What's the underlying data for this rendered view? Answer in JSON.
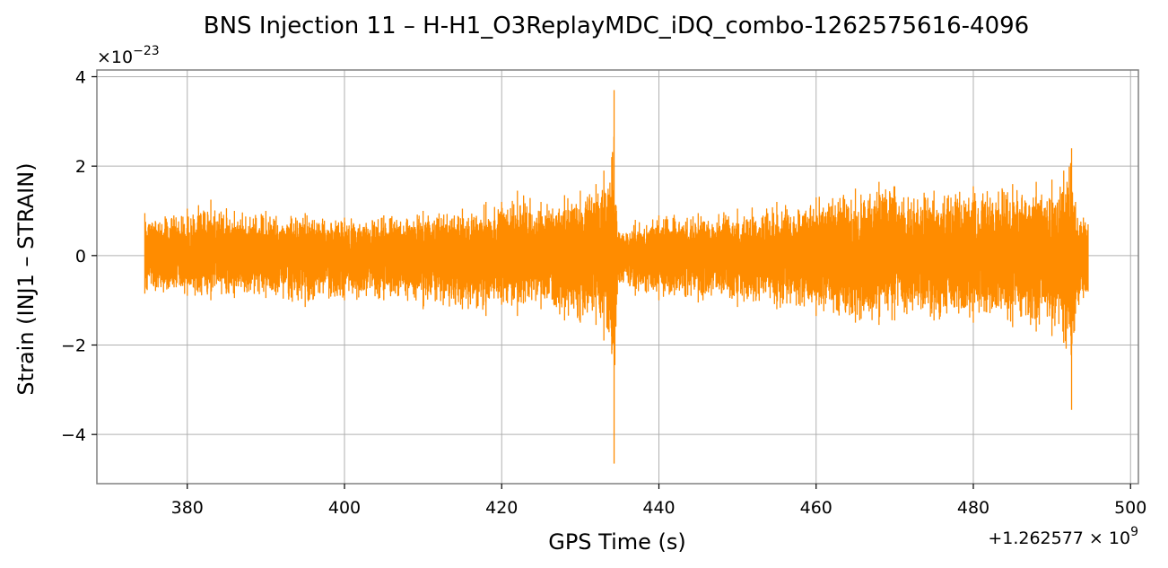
{
  "chart_data": {
    "type": "line",
    "title": "BNS Injection 11 – H-H1_O3ReplayMDC_iDQ_combo-1262575616-4096",
    "xlabel": "GPS Time (s)",
    "ylabel": "Strain (INJ1 – STRAIN)",
    "x_offset_label": "+1.262577 × 10",
    "x_offset_exponent": "9",
    "y_scale_label": "×10",
    "y_scale_exponent": "−23",
    "xlim": [
      368.5,
      501.0
    ],
    "ylim": [
      -5.1,
      4.15
    ],
    "xticks": [
      380,
      400,
      420,
      440,
      460,
      480,
      500
    ],
    "xtick_labels": [
      "380",
      "400",
      "420",
      "440",
      "460",
      "480",
      "500"
    ],
    "yticks": [
      -4,
      -2,
      0,
      2,
      4
    ],
    "ytick_labels": [
      "−4",
      "−2",
      "0",
      "2",
      "4"
    ],
    "grid": true,
    "series": [
      {
        "color": "#ff8c00",
        "x_range": [
          374.6,
          494.6
        ],
        "envelope_x": [
          374.6,
          380,
          383,
          386,
          390,
          395,
          400,
          405,
          410,
          415,
          418,
          420,
          422,
          425,
          428,
          430,
          432,
          433,
          434,
          434.3,
          434.6,
          435,
          437,
          440,
          445,
          450,
          455,
          460,
          465,
          468,
          470,
          475,
          480,
          485,
          488,
          490,
          491.5,
          492.5,
          493,
          494,
          494.6
        ],
        "envelope_upper": [
          0.95,
          1.05,
          1.25,
          1.0,
          1.0,
          0.95,
          0.85,
          0.9,
          1.0,
          1.05,
          1.2,
          1.2,
          1.45,
          1.2,
          1.35,
          1.45,
          1.6,
          1.9,
          2.2,
          3.7,
          1.0,
          0.5,
          0.8,
          0.9,
          0.95,
          1.05,
          1.2,
          1.3,
          1.5,
          1.65,
          1.55,
          1.45,
          1.55,
          1.6,
          1.65,
          1.7,
          1.9,
          2.4,
          1.2,
          0.85,
          0.7
        ],
        "envelope_lower": [
          -0.85,
          -0.9,
          -1.0,
          -0.95,
          -0.95,
          -1.15,
          -1.0,
          -1.0,
          -1.2,
          -1.2,
          -1.35,
          -1.1,
          -1.35,
          -1.2,
          -1.45,
          -1.5,
          -1.55,
          -1.9,
          -2.2,
          -4.65,
          -1.1,
          -0.6,
          -0.9,
          -1.0,
          -1.05,
          -1.15,
          -1.2,
          -1.35,
          -1.5,
          -1.55,
          -1.45,
          -1.45,
          -1.5,
          -1.6,
          -1.7,
          -1.8,
          -1.95,
          -3.45,
          -1.3,
          -0.95,
          -0.8
        ]
      }
    ]
  }
}
